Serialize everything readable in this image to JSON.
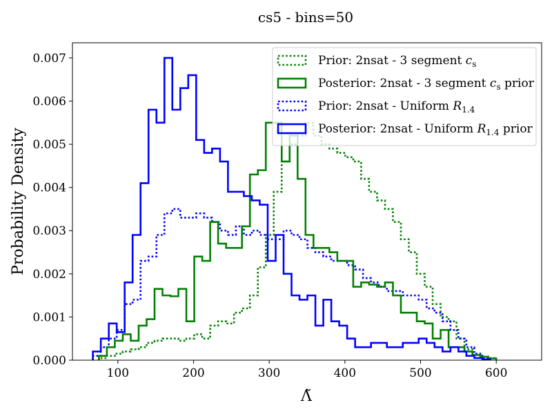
{
  "chart_data": {
    "type": "histogram",
    "title": "cs5 - bins=50",
    "xlabel": "Λ̃",
    "ylabel": "Probability Density",
    "xlim": [
      40,
      660
    ],
    "ylim": [
      0,
      0.00735
    ],
    "xticks": [
      100,
      200,
      300,
      400,
      500,
      600
    ],
    "yticks": [
      0.0,
      0.001,
      0.002,
      0.003,
      0.004,
      0.005,
      0.006,
      0.007
    ],
    "ytick_labels": [
      "0.000",
      "0.001",
      "0.002",
      "0.003",
      "0.004",
      "0.005",
      "0.006",
      "0.007"
    ],
    "legend_position": "top-right",
    "series": [
      {
        "name": "Prior: 2nsat - 3 segment c_s",
        "legend": {
          "base": "Prior: 2nsat - 3 segment ",
          "italic": "c",
          "sub": "s",
          "after": ""
        },
        "color": "#008000",
        "style": "dotted",
        "bins_start": 75,
        "bin_width": 10.5,
        "heights": [
          5e-05,
          0.0001,
          0.00015,
          0.0002,
          0.00025,
          0.0003,
          0.0004,
          0.00045,
          0.0005,
          0.0005,
          0.00045,
          0.0005,
          0.0006,
          0.0005,
          0.0008,
          0.0009,
          0.00085,
          0.0011,
          0.0012,
          0.0015,
          0.00215,
          0.0029,
          0.0039,
          0.0046,
          0.005,
          0.0052,
          0.0055,
          0.0052,
          0.005,
          0.0049,
          0.0048,
          0.0047,
          0.0046,
          0.0042,
          0.0039,
          0.0037,
          0.0035,
          0.0032,
          0.0028,
          0.0025,
          0.002,
          0.0017,
          0.0013,
          0.001,
          0.0009,
          0.0005,
          0.00025,
          0.00012,
          8e-05,
          5e-05
        ]
      },
      {
        "name": "Posterior: 2nsat - 3 segment c_s prior",
        "legend": {
          "base": "Posterior: 2nsat - 3 segment ",
          "italic": "c",
          "sub": "s",
          "after": " prior"
        },
        "color": "#008000",
        "style": "solid",
        "bins_start": 75,
        "bin_width": 10.5,
        "heights": [
          0.0001,
          0.0003,
          0.00045,
          0.0006,
          0.00045,
          0.0008,
          0.00095,
          0.00165,
          0.0015,
          0.00148,
          0.00165,
          0.0009,
          0.0024,
          0.0023,
          0.0032,
          0.0027,
          0.0026,
          0.0026,
          0.0031,
          0.0043,
          0.0044,
          0.0055,
          0.0055,
          0.0046,
          0.0052,
          0.0042,
          0.0029,
          0.0026,
          0.0026,
          0.0025,
          0.0023,
          0.0023,
          0.0017,
          0.0018,
          0.00175,
          0.0017,
          0.0018,
          0.0015,
          0.0011,
          0.0011,
          0.0009,
          0.00085,
          0.0005,
          0.0007,
          0.0003,
          0.0003,
          0.0002,
          0.00012,
          8e-05,
          4e-05
        ]
      },
      {
        "name": "Prior: 2nsat - Uniform R_1.4",
        "legend": {
          "base": "Prior: 2nsat - Uniform ",
          "italic": "R",
          "sub": "1.4",
          "after": ""
        },
        "color": "#0000ff",
        "style": "dotted",
        "bins_start": 67,
        "bin_width": 10.5,
        "heights": [
          0.0001,
          0.0003,
          0.0005,
          0.0007,
          0.0013,
          0.0014,
          0.0023,
          0.0024,
          0.0029,
          0.0034,
          0.0035,
          0.0033,
          0.0033,
          0.0034,
          0.0033,
          0.0032,
          0.003,
          0.0029,
          0.0031,
          0.0029,
          0.003,
          0.0029,
          0.0028,
          0.0028,
          0.003,
          0.0029,
          0.0028,
          0.0026,
          0.0025,
          0.0024,
          0.0023,
          0.0023,
          0.0022,
          0.0021,
          0.0019,
          0.0018,
          0.0017,
          0.0016,
          0.0016,
          0.0015,
          0.0015,
          0.0014,
          0.0012,
          0.0011,
          0.0009,
          0.0007,
          0.0005,
          0.0003,
          0.00015,
          5e-05
        ]
      },
      {
        "name": "Posterior: 2nsat - Uniform R_1.4 prior",
        "legend": {
          "base": "Posterior: 2nsat - Uniform ",
          "italic": "R",
          "sub": "1.4",
          "after": " prior"
        },
        "color": "#0000ff",
        "style": "solid",
        "bins_start": 67,
        "bin_width": 10.5,
        "heights": [
          0.0002,
          0.0005,
          0.00085,
          0.00065,
          0.0018,
          0.0029,
          0.0041,
          0.0058,
          0.0055,
          0.007,
          0.0058,
          0.0063,
          0.0066,
          0.0051,
          0.0048,
          0.0049,
          0.0046,
          0.0039,
          0.0039,
          0.0038,
          0.0037,
          0.0036,
          0.0023,
          0.0029,
          0.002,
          0.0015,
          0.0014,
          0.0015,
          0.0008,
          0.0014,
          0.0009,
          0.0008,
          0.0005,
          0.0003,
          0.0003,
          0.0004,
          0.0004,
          0.0003,
          0.0003,
          0.0004,
          0.0004,
          0.0005,
          0.0004,
          0.0003,
          0.0002,
          0.0003,
          0.0002,
          0.0001,
          5e-05,
          2e-05
        ]
      }
    ]
  }
}
